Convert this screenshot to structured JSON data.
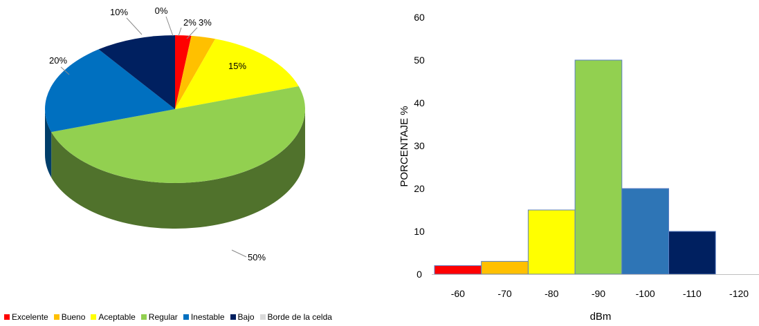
{
  "chart_data": [
    {
      "type": "pie",
      "style": "3d",
      "categories": [
        "Excelente",
        "Bueno",
        "Aceptable",
        "Regular",
        "Inestable",
        "Bajo",
        "Borde de la celda"
      ],
      "values": [
        2,
        3,
        15,
        50,
        20,
        10,
        0
      ],
      "labels": [
        "2%",
        "3%",
        "15%",
        "50%",
        "20%",
        "10%",
        "0%"
      ],
      "colors": [
        "#ff0000",
        "#ffc000",
        "#ffff00",
        "#92d050",
        "#0070c0",
        "#002060",
        "#d9d9d9"
      ],
      "legend": {
        "placement": "bottom"
      }
    },
    {
      "type": "bar",
      "categories": [
        "-60",
        "-70",
        "-80",
        "-90",
        "-100",
        "-110",
        "-120"
      ],
      "values": [
        2,
        3,
        15,
        50,
        20,
        10,
        0
      ],
      "colors": [
        "#ff0000",
        "#ffc000",
        "#ffff00",
        "#92d050",
        "#2e75b6",
        "#002060",
        "#d9d9d9"
      ],
      "xlabel": "dBm",
      "ylabel": "PORCENTAJE %",
      "ylim": [
        0,
        60
      ],
      "yticks": [
        "0",
        "10",
        "20",
        "30",
        "40",
        "50",
        "60"
      ],
      "grid": false
    }
  ]
}
